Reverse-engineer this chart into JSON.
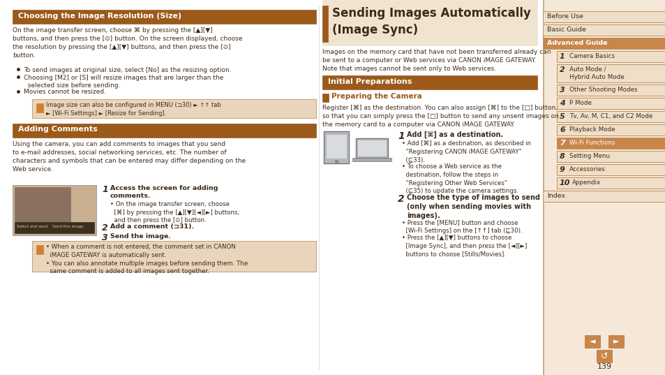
{
  "bg_color": "#ffffff",
  "sidebar_bg_light": "#f5e8d8",
  "sidebar_bg_strip": "#f0dfc8",
  "header_brown": "#9b5a1a",
  "note_bg": "#e8d5bc",
  "note_border": "#c8a070",
  "text_color": "#3d2b1a",
  "white": "#ffffff",
  "page_number": "139",
  "sidebar_items": [
    {
      "label": "Before Use",
      "active": false,
      "indent": false
    },
    {
      "label": "Basic Guide",
      "active": false,
      "indent": false
    },
    {
      "label": "Advanced Guide",
      "active": true,
      "indent": false
    },
    {
      "label": "1",
      "label_rest": "Camera Basics",
      "active": false,
      "indent": true
    },
    {
      "label": "2",
      "label_rest": "Auto Mode /\nHybrid Auto Mode",
      "active": false,
      "indent": true
    },
    {
      "label": "3",
      "label_rest": "Other Shooting Modes",
      "active": false,
      "indent": true
    },
    {
      "label": "4",
      "label_rest": "P Mode",
      "active": false,
      "indent": true
    },
    {
      "label": "5",
      "label_rest": "Tv, Av, M, C1, and C2 Mode",
      "active": false,
      "indent": true
    },
    {
      "label": "6",
      "label_rest": "Playback Mode",
      "active": false,
      "indent": true
    },
    {
      "label": "7",
      "label_rest": "Wi-Fi Functions",
      "active": true,
      "indent": true
    },
    {
      "label": "8",
      "label_rest": "Setting Menu",
      "active": false,
      "indent": true
    },
    {
      "label": "9",
      "label_rest": "Accessories",
      "active": false,
      "indent": true
    },
    {
      "label": "10",
      "label_rest": "Appendix",
      "active": false,
      "indent": true
    },
    {
      "label": "Index",
      "active": false,
      "indent": false
    }
  ]
}
